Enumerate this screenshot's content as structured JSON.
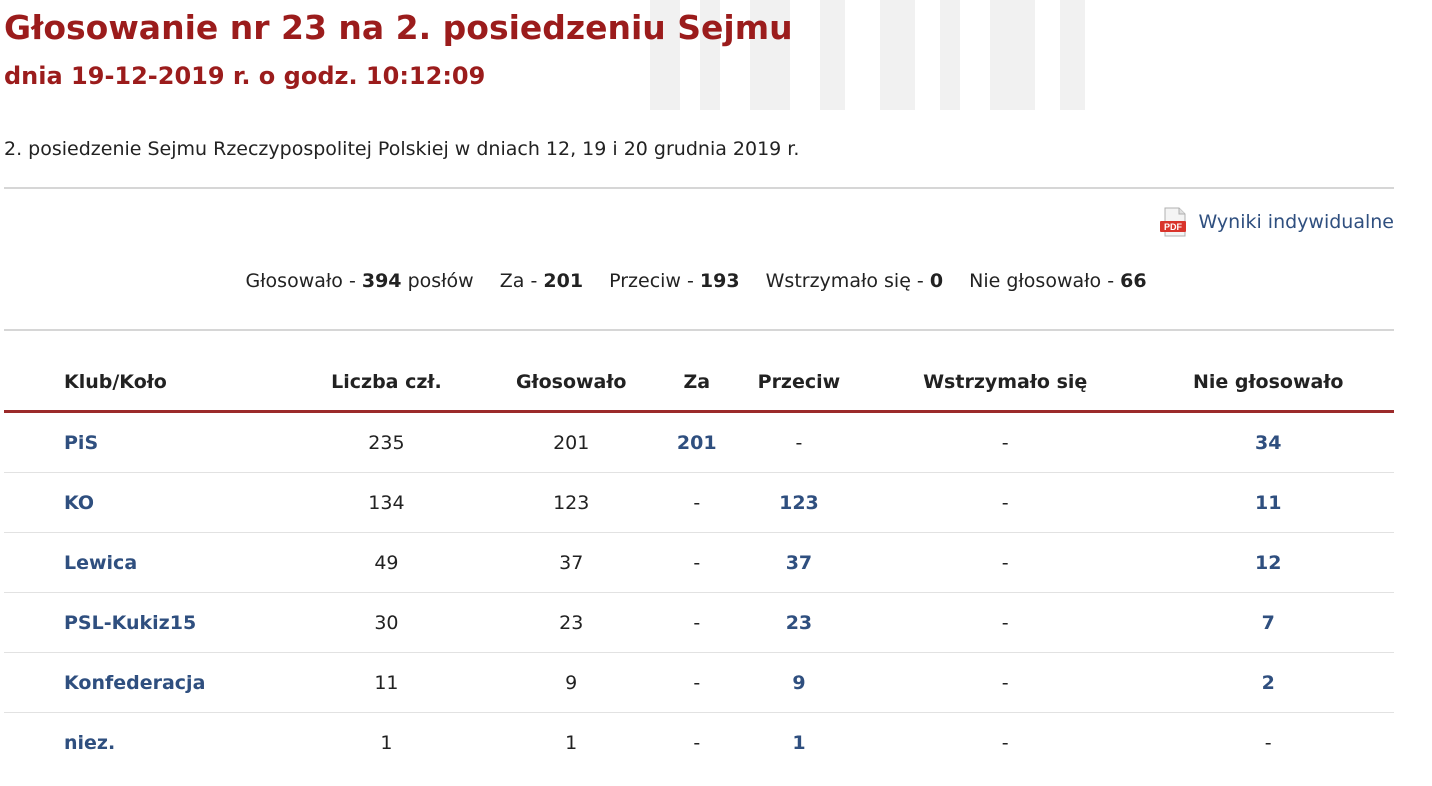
{
  "header": {
    "title": "Głosowanie nr 23 na 2. posiedzeniu Sejmu",
    "subtitle": "dnia 19-12-2019 r. o godz. 10:12:09",
    "session": "2. posiedzenie Sejmu Rzeczypospolitej Polskiej w dniach 12, 19 i 20 grudnia 2019 r."
  },
  "pdf_link": {
    "icon": "pdf-icon",
    "label": "Wyniki indywidualne"
  },
  "summary": {
    "voted_label": "Głosowało -",
    "voted_value": "394",
    "voted_unit": "posłów",
    "for_label": "Za -",
    "for_value": "201",
    "against_label": "Przeciw -",
    "against_value": "193",
    "abstain_label": "Wstrzymało się -",
    "abstain_value": "0",
    "novote_label": "Nie głosowało -",
    "novote_value": "66"
  },
  "table": {
    "headers": [
      "Klub/Koło",
      "Liczba czł.",
      "Głosowało",
      "Za",
      "Przeciw",
      "Wstrzymało się",
      "Nie głosowało"
    ],
    "rows": [
      {
        "club": "PiS",
        "members": "235",
        "voted": "201",
        "za": "201",
        "przeciw": "-",
        "wstrzymalo": "-",
        "nie": "34"
      },
      {
        "club": "KO",
        "members": "134",
        "voted": "123",
        "za": "-",
        "przeciw": "123",
        "wstrzymalo": "-",
        "nie": "11"
      },
      {
        "club": "Lewica",
        "members": "49",
        "voted": "37",
        "za": "-",
        "przeciw": "37",
        "wstrzymalo": "-",
        "nie": "12"
      },
      {
        "club": "PSL-Kukiz15",
        "members": "30",
        "voted": "23",
        "za": "-",
        "przeciw": "23",
        "wstrzymalo": "-",
        "nie": "7"
      },
      {
        "club": "Konfederacja",
        "members": "11",
        "voted": "9",
        "za": "-",
        "przeciw": "9",
        "wstrzymalo": "-",
        "nie": "2"
      },
      {
        "club": "niez.",
        "members": "1",
        "voted": "1",
        "za": "-",
        "przeciw": "1",
        "wstrzymalo": "-",
        "nie": "-"
      }
    ]
  },
  "colors": {
    "title": "#9b1c1c",
    "link": "#2f4f7f",
    "header_rule": "#9b2a2a"
  }
}
